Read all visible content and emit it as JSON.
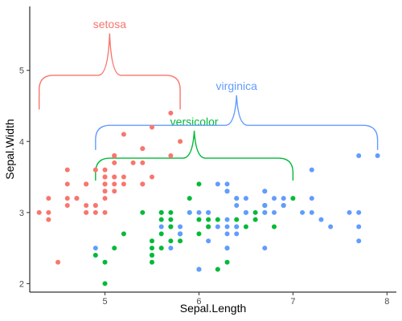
{
  "chart_data": {
    "type": "scatter",
    "xlabel": "Sepal.Length",
    "ylabel": "Sepal.Width",
    "xlim": [
      4.2,
      8.1
    ],
    "ylim": [
      1.88,
      5.9
    ],
    "x_ticks": [
      5,
      6,
      7,
      8
    ],
    "y_ticks": [
      2,
      3,
      4,
      5
    ],
    "grid": false,
    "legend": "none",
    "series": [
      {
        "name": "setosa",
        "color": "#F8766D",
        "brace": {
          "x_start": 4.3,
          "x_end": 5.8,
          "y_base": 4.45,
          "y_tip": 5.52,
          "label_y": 5.65
        },
        "points": [
          [
            5.1,
            3.5
          ],
          [
            4.9,
            3.0
          ],
          [
            4.7,
            3.2
          ],
          [
            4.6,
            3.1
          ],
          [
            5.0,
            3.6
          ],
          [
            5.4,
            3.9
          ],
          [
            4.6,
            3.4
          ],
          [
            5.0,
            3.4
          ],
          [
            4.4,
            2.9
          ],
          [
            4.9,
            3.1
          ],
          [
            5.4,
            3.7
          ],
          [
            4.8,
            3.4
          ],
          [
            4.8,
            3.0
          ],
          [
            4.3,
            3.0
          ],
          [
            5.8,
            4.0
          ],
          [
            5.7,
            4.4
          ],
          [
            5.4,
            3.9
          ],
          [
            5.1,
            3.5
          ],
          [
            5.7,
            3.8
          ],
          [
            5.1,
            3.8
          ],
          [
            5.4,
            3.4
          ],
          [
            5.1,
            3.7
          ],
          [
            4.6,
            3.6
          ],
          [
            5.1,
            3.3
          ],
          [
            4.8,
            3.4
          ],
          [
            5.0,
            3.0
          ],
          [
            5.0,
            3.4
          ],
          [
            5.2,
            3.5
          ],
          [
            5.2,
            3.4
          ],
          [
            4.7,
            3.2
          ],
          [
            4.8,
            3.1
          ],
          [
            5.4,
            3.4
          ],
          [
            5.2,
            4.1
          ],
          [
            5.5,
            4.2
          ],
          [
            4.9,
            3.1
          ],
          [
            5.0,
            3.2
          ],
          [
            5.5,
            3.5
          ],
          [
            4.9,
            3.6
          ],
          [
            4.4,
            3.0
          ],
          [
            5.1,
            3.4
          ],
          [
            5.0,
            3.5
          ],
          [
            4.5,
            2.3
          ],
          [
            4.4,
            3.2
          ],
          [
            5.0,
            3.5
          ],
          [
            5.1,
            3.8
          ],
          [
            4.8,
            3.0
          ],
          [
            5.1,
            3.8
          ],
          [
            4.6,
            3.2
          ],
          [
            5.3,
            3.7
          ],
          [
            5.0,
            3.3
          ]
        ]
      },
      {
        "name": "versicolor",
        "color": "#00BA38",
        "brace": {
          "x_start": 4.9,
          "x_end": 7.0,
          "y_base": 3.45,
          "y_tip": 4.15,
          "label_y": 4.28
        },
        "points": [
          [
            7.0,
            3.2
          ],
          [
            6.4,
            3.2
          ],
          [
            6.9,
            3.1
          ],
          [
            5.5,
            2.3
          ],
          [
            6.5,
            2.8
          ],
          [
            5.7,
            2.8
          ],
          [
            6.3,
            3.3
          ],
          [
            4.9,
            2.4
          ],
          [
            6.6,
            2.9
          ],
          [
            5.2,
            2.7
          ],
          [
            5.0,
            2.0
          ],
          [
            5.9,
            3.0
          ],
          [
            6.0,
            2.2
          ],
          [
            6.1,
            2.9
          ],
          [
            5.6,
            2.9
          ],
          [
            6.7,
            3.1
          ],
          [
            5.6,
            3.0
          ],
          [
            5.8,
            2.7
          ],
          [
            6.2,
            2.2
          ],
          [
            5.6,
            2.5
          ],
          [
            5.9,
            3.2
          ],
          [
            6.1,
            2.8
          ],
          [
            6.3,
            2.5
          ],
          [
            6.1,
            2.8
          ],
          [
            6.4,
            2.9
          ],
          [
            6.6,
            3.0
          ],
          [
            6.8,
            2.8
          ],
          [
            6.7,
            3.0
          ],
          [
            6.0,
            2.9
          ],
          [
            5.7,
            2.6
          ],
          [
            5.5,
            2.4
          ],
          [
            5.5,
            2.4
          ],
          [
            5.8,
            2.7
          ],
          [
            6.0,
            2.7
          ],
          [
            5.4,
            3.0
          ],
          [
            6.0,
            3.4
          ],
          [
            6.7,
            3.1
          ],
          [
            6.3,
            2.3
          ],
          [
            5.6,
            3.0
          ],
          [
            5.5,
            2.5
          ],
          [
            5.5,
            2.6
          ],
          [
            6.1,
            3.0
          ],
          [
            5.8,
            2.6
          ],
          [
            5.0,
            2.3
          ],
          [
            5.6,
            2.7
          ],
          [
            5.7,
            3.0
          ],
          [
            5.7,
            2.9
          ],
          [
            6.2,
            2.9
          ],
          [
            5.1,
            2.5
          ],
          [
            5.7,
            2.8
          ]
        ]
      },
      {
        "name": "virginica",
        "color": "#619CFF",
        "brace": {
          "x_start": 4.9,
          "x_end": 7.9,
          "y_base": 3.88,
          "y_tip": 4.65,
          "label_y": 4.78
        },
        "points": [
          [
            6.3,
            3.3
          ],
          [
            5.8,
            2.7
          ],
          [
            7.1,
            3.0
          ],
          [
            6.3,
            2.9
          ],
          [
            6.5,
            3.0
          ],
          [
            7.6,
            3.0
          ],
          [
            4.9,
            2.5
          ],
          [
            7.3,
            2.9
          ],
          [
            6.7,
            2.5
          ],
          [
            7.2,
            3.6
          ],
          [
            6.5,
            3.2
          ],
          [
            6.4,
            2.7
          ],
          [
            6.8,
            3.0
          ],
          [
            5.7,
            2.5
          ],
          [
            5.8,
            2.8
          ],
          [
            6.4,
            3.2
          ],
          [
            6.5,
            3.0
          ],
          [
            7.7,
            3.8
          ],
          [
            7.7,
            2.6
          ],
          [
            6.0,
            2.2
          ],
          [
            6.9,
            3.2
          ],
          [
            5.6,
            2.8
          ],
          [
            7.7,
            2.8
          ],
          [
            6.3,
            2.7
          ],
          [
            6.7,
            3.3
          ],
          [
            7.2,
            3.2
          ],
          [
            6.2,
            2.8
          ],
          [
            6.1,
            3.0
          ],
          [
            6.4,
            2.8
          ],
          [
            7.2,
            3.0
          ],
          [
            7.4,
            2.8
          ],
          [
            7.9,
            3.8
          ],
          [
            6.4,
            2.8
          ],
          [
            6.3,
            2.8
          ],
          [
            6.1,
            2.6
          ],
          [
            7.7,
            3.0
          ],
          [
            6.3,
            3.4
          ],
          [
            6.4,
            3.1
          ],
          [
            6.0,
            3.0
          ],
          [
            6.9,
            3.1
          ],
          [
            6.7,
            3.1
          ],
          [
            6.9,
            3.1
          ],
          [
            5.8,
            2.7
          ],
          [
            6.8,
            3.2
          ],
          [
            6.7,
            3.3
          ],
          [
            6.7,
            3.0
          ],
          [
            6.3,
            2.5
          ],
          [
            6.5,
            3.0
          ],
          [
            6.2,
            3.4
          ],
          [
            5.9,
            3.0
          ]
        ]
      }
    ]
  }
}
